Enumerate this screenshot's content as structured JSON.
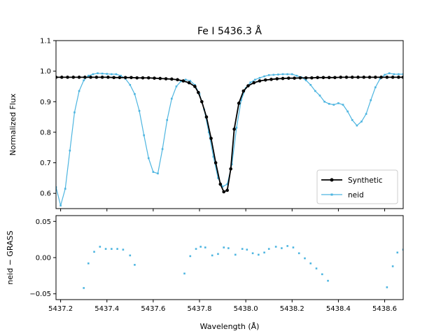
{
  "chart_data": [
    {
      "type": "line",
      "title": "Fe I 5436.3 Å",
      "xlabel": "",
      "ylabel": "Normalized Flux",
      "xlim": [
        5437.18,
        5438.68
      ],
      "ylim": [
        0.55,
        1.1
      ],
      "xticks": [
        5437.2,
        5437.4,
        5437.6,
        5437.8,
        5438.0,
        5438.2,
        5438.4,
        5438.6
      ],
      "yticks": [
        0.6,
        0.7,
        0.8,
        0.9,
        1.0,
        1.1
      ],
      "ytick_labels": [
        "0.6",
        "0.7",
        "0.8",
        "0.9",
        "1.0",
        "1.1"
      ],
      "legend": {
        "position": "lower-right",
        "entries": [
          "Synthetic",
          "neid"
        ]
      },
      "series": [
        {
          "name": "Synthetic",
          "color": "#000000",
          "x": [
            5437.18,
            5437.205,
            5437.23,
            5437.255,
            5437.28,
            5437.305,
            5437.33,
            5437.355,
            5437.38,
            5437.405,
            5437.43,
            5437.455,
            5437.48,
            5437.505,
            5437.53,
            5437.555,
            5437.58,
            5437.605,
            5437.63,
            5437.655,
            5437.68,
            5437.705,
            5437.73,
            5437.755,
            5437.78,
            5437.795,
            5437.81,
            5437.83,
            5437.85,
            5437.87,
            5437.89,
            5437.905,
            5437.92,
            5437.935,
            5437.95,
            5437.97,
            5437.99,
            5438.01,
            5438.035,
            5438.06,
            5438.085,
            5438.11,
            5438.135,
            5438.16,
            5438.185,
            5438.21,
            5438.235,
            5438.26,
            5438.285,
            5438.31,
            5438.335,
            5438.36,
            5438.385,
            5438.41,
            5438.435,
            5438.46,
            5438.485,
            5438.51,
            5438.535,
            5438.56,
            5438.585,
            5438.61,
            5438.635,
            5438.66,
            5438.68
          ],
          "y": [
            0.98,
            0.98,
            0.98,
            0.98,
            0.98,
            0.98,
            0.98,
            0.98,
            0.98,
            0.98,
            0.979,
            0.979,
            0.979,
            0.979,
            0.978,
            0.978,
            0.978,
            0.977,
            0.976,
            0.975,
            0.974,
            0.972,
            0.968,
            0.962,
            0.95,
            0.93,
            0.9,
            0.85,
            0.78,
            0.7,
            0.63,
            0.605,
            0.61,
            0.68,
            0.81,
            0.895,
            0.935,
            0.952,
            0.962,
            0.968,
            0.971,
            0.973,
            0.975,
            0.976,
            0.977,
            0.977,
            0.978,
            0.978,
            0.978,
            0.979,
            0.979,
            0.979,
            0.979,
            0.98,
            0.98,
            0.98,
            0.98,
            0.98,
            0.98,
            0.98,
            0.98,
            0.98,
            0.98,
            0.98,
            0.98
          ]
        },
        {
          "name": "neid",
          "color": "#4db5e0",
          "x": [
            5437.18,
            5437.2,
            5437.22,
            5437.24,
            5437.26,
            5437.28,
            5437.3,
            5437.32,
            5437.34,
            5437.36,
            5437.38,
            5437.4,
            5437.42,
            5437.44,
            5437.46,
            5437.48,
            5437.5,
            5437.52,
            5437.54,
            5437.56,
            5437.58,
            5437.6,
            5437.62,
            5437.64,
            5437.66,
            5437.68,
            5437.7,
            5437.72,
            5437.74,
            5437.76,
            5437.78,
            5437.8,
            5437.82,
            5437.84,
            5437.86,
            5437.88,
            5437.9,
            5437.92,
            5437.94,
            5437.96,
            5437.98,
            5438.0,
            5438.02,
            5438.04,
            5438.06,
            5438.08,
            5438.1,
            5438.12,
            5438.14,
            5438.16,
            5438.18,
            5438.2,
            5438.22,
            5438.24,
            5438.26,
            5438.28,
            5438.3,
            5438.32,
            5438.34,
            5438.36,
            5438.38,
            5438.4,
            5438.42,
            5438.44,
            5438.46,
            5438.48,
            5438.5,
            5438.52,
            5438.54,
            5438.56,
            5438.58,
            5438.6,
            5438.62,
            5438.64,
            5438.66,
            5438.68
          ],
          "y": [
            0.62,
            0.56,
            0.615,
            0.74,
            0.865,
            0.935,
            0.97,
            0.985,
            0.99,
            0.993,
            0.992,
            0.991,
            0.99,
            0.99,
            0.985,
            0.975,
            0.955,
            0.925,
            0.87,
            0.79,
            0.715,
            0.67,
            0.665,
            0.745,
            0.84,
            0.91,
            0.95,
            0.967,
            0.972,
            0.968,
            0.955,
            0.925,
            0.875,
            0.8,
            0.72,
            0.65,
            0.622,
            0.63,
            0.695,
            0.815,
            0.905,
            0.945,
            0.963,
            0.972,
            0.978,
            0.983,
            0.987,
            0.988,
            0.989,
            0.99,
            0.99,
            0.99,
            0.985,
            0.98,
            0.97,
            0.955,
            0.935,
            0.92,
            0.9,
            0.893,
            0.89,
            0.895,
            0.89,
            0.868,
            0.84,
            0.822,
            0.835,
            0.86,
            0.905,
            0.947,
            0.975,
            0.988,
            0.993,
            0.99,
            0.99,
            0.99
          ]
        }
      ]
    },
    {
      "type": "scatter",
      "title": "",
      "xlabel": "Wavelength (Å)",
      "ylabel": "neid  −  GRASS",
      "xlim": [
        5437.18,
        5438.68
      ],
      "ylim": [
        -0.058,
        0.058
      ],
      "xticks": [
        5437.2,
        5437.4,
        5437.6,
        5437.8,
        5438.0,
        5438.2,
        5438.4,
        5438.6
      ],
      "xtick_labels": [
        "5437.2",
        "5437.4",
        "5437.6",
        "5437.8",
        "5438.0",
        "5438.2",
        "5438.4",
        "5438.6"
      ],
      "yticks": [
        -0.05,
        0.0,
        0.05
      ],
      "ytick_labels": [
        "−0.05",
        "0.00",
        "0.05"
      ],
      "series": [
        {
          "name": "neid",
          "color": "#4db5e0",
          "x": [
            5437.3,
            5437.32,
            5437.345,
            5437.37,
            5437.395,
            5437.42,
            5437.445,
            5437.47,
            5437.5,
            5437.52,
            5437.735,
            5437.76,
            5437.785,
            5437.805,
            5437.825,
            5437.855,
            5437.88,
            5437.905,
            5437.925,
            5437.955,
            5437.985,
            5438.005,
            5438.03,
            5438.055,
            5438.08,
            5438.1,
            5438.13,
            5438.155,
            5438.18,
            5438.205,
            5438.23,
            5438.255,
            5438.28,
            5438.305,
            5438.33,
            5438.355,
            5438.61,
            5438.635,
            5438.655,
            5438.68
          ],
          "y": [
            -0.042,
            -0.008,
            0.008,
            0.015,
            0.012,
            0.012,
            0.012,
            0.011,
            0.003,
            -0.01,
            -0.022,
            0.002,
            0.012,
            0.015,
            0.014,
            0.003,
            0.005,
            0.014,
            0.013,
            0.004,
            0.012,
            0.011,
            0.006,
            0.004,
            0.007,
            0.012,
            0.015,
            0.013,
            0.016,
            0.014,
            0.006,
            -0.001,
            -0.008,
            -0.015,
            -0.023,
            -0.032,
            -0.041,
            -0.012,
            0.007,
            0.011
          ]
        }
      ]
    }
  ]
}
